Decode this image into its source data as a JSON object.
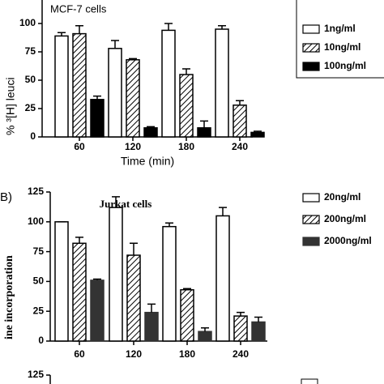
{
  "chart_data": [
    {
      "type": "bar",
      "title": "MCF-7 cells",
      "y_label": "% ³[H] leuci",
      "x_label": "Time (min)",
      "categories": [
        "60",
        "120",
        "180",
        "240"
      ],
      "ylim": [
        0,
        125
      ],
      "yticks": [
        0,
        25,
        50,
        75,
        100
      ],
      "series": [
        {
          "name": "1ng/ml",
          "style": "open",
          "color": "#000000",
          "values": [
            89,
            78,
            94,
            95
          ],
          "errors": [
            3,
            7,
            6,
            3
          ]
        },
        {
          "name": "10ng/ml",
          "style": "hatched",
          "color": "#000000",
          "values": [
            91,
            68,
            55,
            28
          ],
          "errors": [
            7,
            1,
            5,
            4
          ]
        },
        {
          "name": "100ng/ml",
          "style": "solid",
          "color": "#000000",
          "values": [
            33,
            8,
            8,
            4
          ],
          "errors": [
            3,
            1,
            6,
            1
          ]
        }
      ]
    },
    {
      "type": "bar",
      "panel": "B)",
      "title": "Jurkat cells",
      "y_label": "ine incorporation",
      "categories": [
        "60",
        "120",
        "180",
        "240"
      ],
      "ylim": [
        0,
        125
      ],
      "yticks": [
        0,
        25,
        50,
        75,
        100,
        125
      ],
      "series": [
        {
          "name": "20ng/ml",
          "style": "open",
          "color": "#000000",
          "values": [
            100,
            112,
            96,
            105
          ],
          "errors": [
            0,
            9,
            3,
            7
          ]
        },
        {
          "name": "200ng/ml",
          "style": "hatched",
          "color": "#000000",
          "values": [
            82,
            72,
            43,
            21
          ],
          "errors": [
            5,
            10,
            1,
            3
          ]
        },
        {
          "name": "2000ng/ml",
          "style": "solid",
          "color": "#333333",
          "values": [
            51,
            24,
            8,
            16
          ],
          "errors": [
            1,
            7,
            3,
            4
          ]
        }
      ]
    },
    {
      "type": "bar",
      "ylim": [
        0,
        125
      ],
      "yticks": [
        125
      ]
    }
  ]
}
